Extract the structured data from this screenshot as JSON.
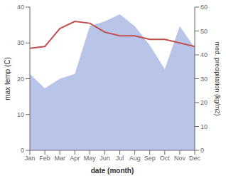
{
  "chart_data": {
    "type": "line",
    "categories": [
      "Jan",
      "Feb",
      "Mar",
      "Apr",
      "May",
      "Jun",
      "Jul",
      "Aug",
      "Sep",
      "Oct",
      "Nov",
      "Dec"
    ],
    "series": [
      {
        "type": "area",
        "axis": "y2",
        "color": "#b8c4e8",
        "values": [
          32,
          26,
          30,
          32,
          52,
          54,
          57,
          52,
          44,
          34,
          52,
          43
        ]
      },
      {
        "type": "line",
        "color": "#c0504d",
        "values": [
          28.5,
          29.0,
          34.0,
          36.0,
          35.5,
          33.0,
          32.0,
          32.0,
          31.0,
          31.0,
          30.0,
          29.0
        ]
      }
    ],
    "xlabel": "date (month)",
    "ylabel": "max temp (C)",
    "y2label": "med. precipitation (kg/m2)",
    "ylim": [
      0,
      40
    ],
    "yticks": [
      0,
      10,
      20,
      30,
      40
    ],
    "y2lim": [
      0,
      60
    ],
    "y2ticks": [
      0,
      10,
      20,
      30,
      40,
      50,
      60
    ],
    "grid": false
  }
}
